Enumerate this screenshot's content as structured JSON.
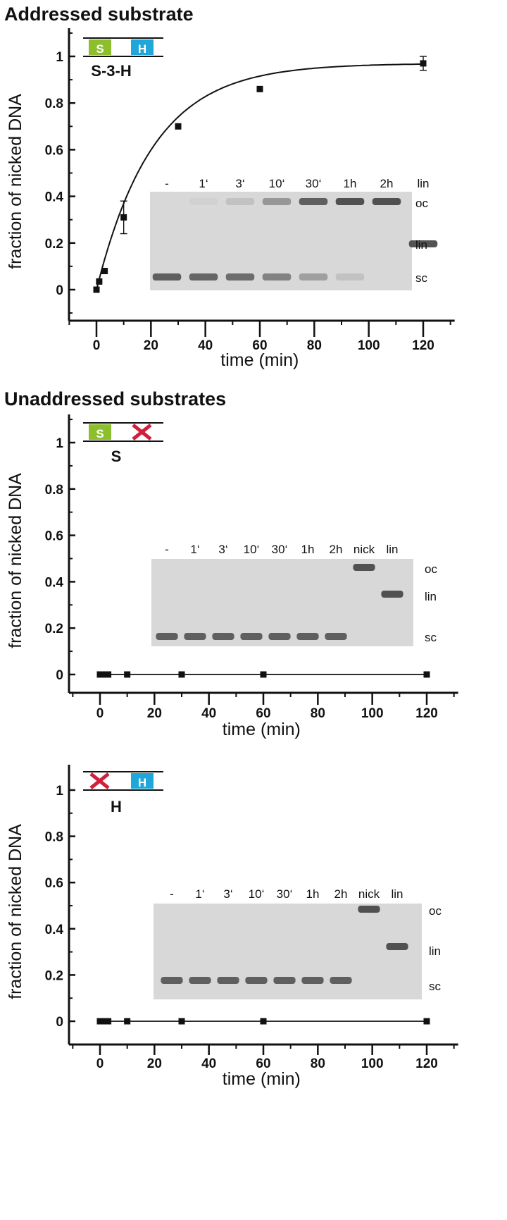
{
  "sections": {
    "addressed_title": "Addressed substrate",
    "unaddressed_title": "Unaddressed substrates"
  },
  "colors": {
    "s_box": "#8dbf2c",
    "h_box": "#1fa7d9",
    "cross": "#d0203a",
    "axis": "#111111",
    "gel_bg": "#d2d2d2",
    "band": "#4a4a4a"
  },
  "chart_data": [
    {
      "type": "scatter",
      "construct": {
        "name": "S-3-H",
        "left": "S",
        "right": "H"
      },
      "xlabel": "time (min)",
      "ylabel": "fraction of nicked DNA",
      "xlim": [
        -10,
        130
      ],
      "ylim": [
        -0.05,
        1.1
      ],
      "xticks": [
        0,
        20,
        40,
        60,
        80,
        100,
        120
      ],
      "yticks": [
        0.0,
        0.2,
        0.4,
        0.6,
        0.8,
        1.0
      ],
      "series": [
        {
          "x": [
            0,
            1,
            3,
            10,
            30,
            60,
            120
          ],
          "y": [
            0.0,
            0.035,
            0.08,
            0.31,
            0.7,
            0.86,
            0.97
          ],
          "yerr": [
            0,
            0,
            0,
            0.07,
            0,
            0,
            0.03
          ]
        }
      ],
      "fit": {
        "model": "exponential",
        "plateau": 0.97,
        "rate_per_min": 0.048
      },
      "gel": {
        "lanes": [
          "-",
          "1‘",
          "3‘",
          "10‘",
          "30‘",
          "1h",
          "2h",
          "lin"
        ],
        "band_labels": [
          "oc",
          "lin",
          "sc"
        ],
        "oc_intensity": [
          0,
          0.05,
          0.15,
          0.45,
          0.85,
          0.95,
          0.95,
          0
        ],
        "lin_intensity": [
          0,
          0,
          0,
          0,
          0,
          0,
          0,
          0.95
        ],
        "sc_intensity": [
          0.85,
          0.8,
          0.75,
          0.6,
          0.4,
          0.15,
          0.0,
          0
        ]
      }
    },
    {
      "type": "line",
      "construct": {
        "name": "S",
        "left": "S",
        "right": "x"
      },
      "xlabel": "time (min)",
      "ylabel": "fraction of nicked DNA",
      "xlim": [
        -10,
        130
      ],
      "ylim": [
        -0.1,
        1.1
      ],
      "xticks": [
        0,
        20,
        40,
        60,
        80,
        100,
        120
      ],
      "yticks": [
        0.0,
        0.2,
        0.4,
        0.6,
        0.8,
        1.0
      ],
      "series": [
        {
          "x": [
            0,
            1,
            3,
            10,
            30,
            60,
            120
          ],
          "y": [
            0,
            0,
            0,
            0,
            0,
            0,
            0
          ]
        }
      ],
      "gel": {
        "lanes": [
          "-",
          "1‘",
          "3‘",
          "10‘",
          "30‘",
          "1h",
          "2h",
          "nick",
          "lin"
        ],
        "band_labels": [
          "oc",
          "lin",
          "sc"
        ],
        "oc_intensity": [
          0,
          0,
          0,
          0,
          0,
          0,
          0,
          0.95,
          0
        ],
        "lin_intensity": [
          0,
          0,
          0,
          0,
          0,
          0,
          0,
          0,
          0.95
        ],
        "sc_intensity": [
          0.85,
          0.85,
          0.85,
          0.85,
          0.85,
          0.85,
          0.85,
          0,
          0
        ]
      }
    },
    {
      "type": "line",
      "construct": {
        "name": "H",
        "left": "x",
        "right": "H"
      },
      "xlabel": "time (min)",
      "ylabel": "fraction of nicked DNA",
      "xlim": [
        -10,
        130
      ],
      "ylim": [
        -0.1,
        1.1
      ],
      "xticks": [
        0,
        20,
        40,
        60,
        80,
        100,
        120
      ],
      "yticks": [
        0.0,
        0.2,
        0.4,
        0.6,
        0.8,
        1.0
      ],
      "series": [
        {
          "x": [
            0,
            1,
            3,
            10,
            30,
            60,
            120
          ],
          "y": [
            0,
            0,
            0,
            0,
            0,
            0,
            0
          ]
        }
      ],
      "gel": {
        "lanes": [
          "-",
          "1‘",
          "3‘",
          "10‘",
          "30‘",
          "1h",
          "2h",
          "nick",
          "lin"
        ],
        "band_labels": [
          "oc",
          "lin",
          "sc"
        ],
        "oc_intensity": [
          0,
          0,
          0,
          0,
          0,
          0,
          0,
          0.95,
          0
        ],
        "lin_intensity": [
          0,
          0,
          0,
          0,
          0,
          0,
          0,
          0,
          0.95
        ],
        "sc_intensity": [
          0.85,
          0.85,
          0.85,
          0.85,
          0.85,
          0.85,
          0.85,
          0,
          0
        ]
      }
    }
  ]
}
